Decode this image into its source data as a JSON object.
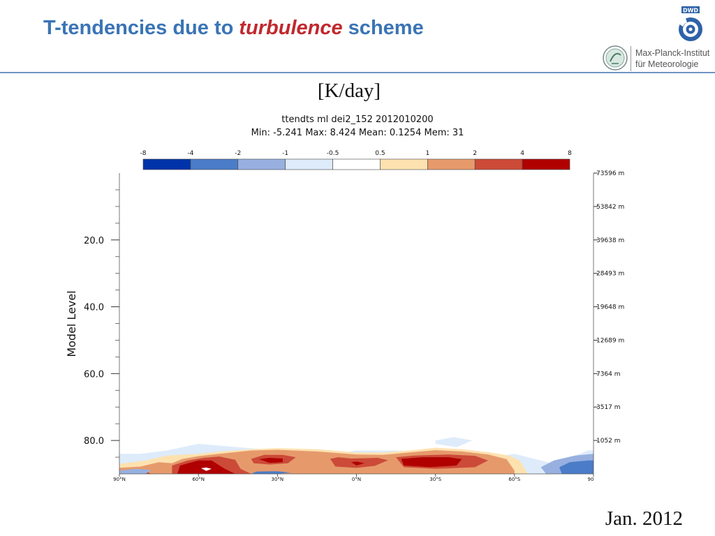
{
  "slide": {
    "title_pre": "T-tendencies due to ",
    "title_highlight": "turbulence",
    "title_post": " scheme",
    "units": "[K/day]",
    "date": "Jan. 2012",
    "institute_line1": "Max-Planck-Institut",
    "institute_line2": "für Meteorologie",
    "dwd_label": "DWD"
  },
  "colors": {
    "title": "#3a74b5",
    "title_highlight": "#c0282d",
    "rule": "#6f95c2"
  },
  "chart_data": {
    "type": "heatmap",
    "header_line1": "ttendts  ml    dei2_152    2012010200",
    "header_line2": "Min:  -5.241   Max:  8.424   Mean:  0.1254   Mem:  31",
    "ylabel": "Model Level",
    "ylim": [
      0,
      90
    ],
    "y_ticks": [
      20,
      40,
      60,
      80
    ],
    "y_tick_labels": [
      "20.0",
      "40.0",
      "60.0",
      "80.0"
    ],
    "x_ticks": [
      90,
      60,
      30,
      0,
      -30,
      -60,
      -90
    ],
    "x_tick_labels": [
      "90°N",
      "60°N",
      "30°N",
      "0°N",
      "30°S",
      "60°S",
      "90"
    ],
    "right_ticks": [
      {
        "level": 0,
        "label": "73596 m"
      },
      {
        "level": 10,
        "label": "53842 m"
      },
      {
        "level": 20,
        "label": "39638 m"
      },
      {
        "level": 30,
        "label": "28493 m"
      },
      {
        "level": 40,
        "label": "19648 m"
      },
      {
        "level": 50,
        "label": "12689 m"
      },
      {
        "level": 60,
        "label": "7364 m"
      },
      {
        "level": 70,
        "label": "3517 m"
      },
      {
        "level": 80,
        "label": "1052 m"
      }
    ],
    "colorbar_labels": [
      "-8",
      "-4",
      "-2",
      "-1",
      "-0.5",
      "0.5",
      "1",
      "2",
      "4",
      "8"
    ],
    "colorbar_colors": [
      "#0033aa",
      "#4a7cc8",
      "#97b0e0",
      "#deebfa",
      "#ffffff",
      "#fde2b0",
      "#e69a6c",
      "#cc4a38",
      "#b00000"
    ],
    "contours": [
      {
        "color": "#deebfa",
        "pts": [
          [
            -88,
            83
          ],
          [
            -75,
            87
          ],
          [
            -60,
            84
          ],
          [
            -45,
            86
          ],
          [
            -30,
            84
          ],
          [
            -15,
            83
          ],
          [
            0,
            83
          ],
          [
            15,
            85
          ],
          [
            30,
            83
          ],
          [
            45,
            82
          ],
          [
            60,
            81
          ],
          [
            72,
            83
          ],
          [
            82,
            84
          ],
          [
            90,
            84
          ],
          [
            90,
            90
          ],
          [
            -90,
            90
          ],
          [
            -90,
            83
          ]
        ]
      },
      {
        "color": "#deebfa",
        "pts": [
          [
            -30,
            80
          ],
          [
            -37,
            79
          ],
          [
            -44,
            80
          ],
          [
            -38,
            82
          ],
          [
            -30,
            81
          ]
        ]
      },
      {
        "color": "#fde2b0",
        "pts": [
          [
            90,
            87
          ],
          [
            80,
            86
          ],
          [
            72,
            84.5
          ],
          [
            60,
            84
          ],
          [
            50,
            83.2
          ],
          [
            40,
            82.6
          ],
          [
            30,
            82.3
          ],
          [
            15,
            82.6
          ],
          [
            0,
            83.6
          ],
          [
            -10,
            83.6
          ],
          [
            -20,
            83
          ],
          [
            -30,
            82.2
          ],
          [
            -40,
            82.6
          ],
          [
            -50,
            83.5
          ],
          [
            -58,
            84.5
          ],
          [
            -62,
            86
          ],
          [
            -65,
            90
          ],
          [
            90,
            90
          ]
        ]
      },
      {
        "color": "#e69a6c",
        "pts": [
          [
            90,
            88.2
          ],
          [
            82,
            87.8
          ],
          [
            75,
            86.5
          ],
          [
            70,
            86.8
          ],
          [
            66,
            85.5
          ],
          [
            60,
            84.7
          ],
          [
            52,
            84
          ],
          [
            40,
            83
          ],
          [
            30,
            82.8
          ],
          [
            15,
            83.3
          ],
          [
            0,
            84.2
          ],
          [
            -10,
            84.3
          ],
          [
            -20,
            83.6
          ],
          [
            -30,
            82.9
          ],
          [
            -40,
            83.3
          ],
          [
            -50,
            84.2
          ],
          [
            -57,
            85.6
          ],
          [
            -60,
            89
          ],
          [
            -60,
            90
          ],
          [
            90,
            90
          ]
        ]
      },
      {
        "color": "#cc4a38",
        "pts": [
          [
            90,
            90
          ],
          [
            90,
            89.2
          ],
          [
            85,
            88.8
          ],
          [
            80,
            89.1
          ],
          [
            78,
            90
          ]
        ]
      },
      {
        "color": "#cc4a38",
        "pts": [
          [
            70,
            90
          ],
          [
            70,
            87.5
          ],
          [
            64,
            86
          ],
          [
            58,
            85.2
          ],
          [
            52,
            84.8
          ],
          [
            46,
            85.8
          ],
          [
            44,
            88.5
          ],
          [
            40,
            90
          ]
        ]
      },
      {
        "color": "#cc4a38",
        "pts": [
          [
            40,
            85.5
          ],
          [
            35,
            84.3
          ],
          [
            28,
            84.3
          ],
          [
            23,
            85
          ],
          [
            26,
            86.8
          ],
          [
            33,
            87.2
          ],
          [
            39,
            86.8
          ]
        ]
      },
      {
        "color": "#cc4a38",
        "pts": [
          [
            10,
            85.5
          ],
          [
            7,
            85
          ],
          [
            2,
            85.4
          ],
          [
            -8,
            85.2
          ],
          [
            -12,
            85.9
          ],
          [
            -7,
            87.6
          ],
          [
            0,
            88.2
          ],
          [
            8,
            87.8
          ]
        ]
      },
      {
        "color": "#cc4a38",
        "pts": [
          [
            -15,
            85
          ],
          [
            -22,
            84.5
          ],
          [
            -35,
            84.2
          ],
          [
            -45,
            84.6
          ],
          [
            -50,
            86
          ],
          [
            -45,
            88
          ],
          [
            -30,
            88.5
          ],
          [
            -18,
            88
          ]
        ]
      },
      {
        "color": "#b00000",
        "pts": [
          [
            68,
            90
          ],
          [
            67,
            87.5
          ],
          [
            60,
            86
          ],
          [
            55,
            86
          ],
          [
            50,
            88.5
          ],
          [
            46,
            90
          ]
        ]
      },
      {
        "color": "#b00000",
        "pts": [
          [
            37,
            85.6
          ],
          [
            33,
            85.2
          ],
          [
            28,
            85.4
          ],
          [
            28,
            86.5
          ],
          [
            33,
            86.7
          ]
        ]
      },
      {
        "color": "#b00000",
        "pts": [
          [
            2,
            86.5
          ],
          [
            0,
            86.3
          ],
          [
            -3,
            86.8
          ],
          [
            0,
            87.5
          ]
        ]
      },
      {
        "color": "#b00000",
        "pts": [
          [
            -17,
            85.5
          ],
          [
            -25,
            85
          ],
          [
            -35,
            85
          ],
          [
            -40,
            85.6
          ],
          [
            -38,
            87.5
          ],
          [
            -28,
            88
          ],
          [
            -18,
            87.5
          ]
        ]
      },
      {
        "color": "#ffffff",
        "pts": [
          [
            59,
            88.3
          ],
          [
            57,
            88.1
          ],
          [
            55,
            88.5
          ],
          [
            57,
            89.1
          ]
        ]
      },
      {
        "color": "#97b0e0",
        "pts": [
          [
            -72,
            90
          ],
          [
            -70,
            88
          ],
          [
            -75,
            86
          ],
          [
            -83,
            84.5
          ],
          [
            -90,
            84
          ],
          [
            -90,
            90
          ]
        ]
      },
      {
        "color": "#4a7cc8",
        "pts": [
          [
            -78,
            90
          ],
          [
            -77,
            88
          ],
          [
            -81,
            86.5
          ],
          [
            -88,
            86
          ],
          [
            -90,
            86
          ],
          [
            -90,
            90
          ]
        ]
      },
      {
        "color": "#97b0e0",
        "pts": [
          [
            90,
            89
          ],
          [
            84,
            88.5
          ],
          [
            78,
            88.8
          ],
          [
            80,
            90
          ],
          [
            90,
            90
          ]
        ]
      },
      {
        "color": "#4a7cc8",
        "pts": [
          [
            40,
            90
          ],
          [
            38,
            89.3
          ],
          [
            30,
            89.2
          ],
          [
            25,
            89.6
          ],
          [
            30,
            90
          ]
        ]
      }
    ]
  }
}
